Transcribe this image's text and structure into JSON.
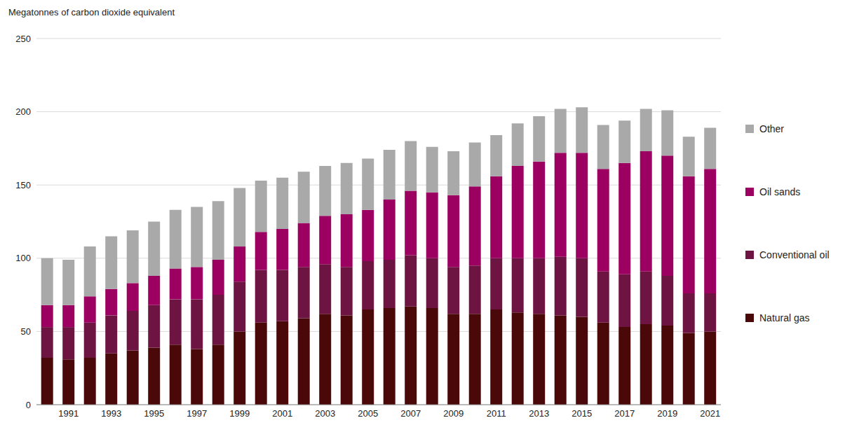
{
  "chart_data": {
    "type": "bar",
    "stacked": true,
    "grid": true,
    "legend": "right",
    "y_label": "Megatonnes of carbon dioxide equivalent",
    "categories": [
      null,
      "1991",
      null,
      "1993",
      null,
      "1995",
      null,
      "1997",
      null,
      "1999",
      null,
      "2001",
      null,
      "2003",
      null,
      "2005",
      null,
      "2007",
      null,
      "2009",
      null,
      "2011",
      null,
      "2013",
      null,
      "2015",
      null,
      "2017",
      null,
      "2019",
      null,
      "2021"
    ],
    "ylim": [
      0,
      250
    ],
    "yticks": [
      0,
      50,
      100,
      150,
      200,
      250
    ],
    "series": [
      {
        "name": "Natural gas",
        "color": "#4a0808",
        "values": [
          32,
          31,
          32,
          35,
          37,
          39,
          41,
          38,
          41,
          50,
          56,
          57,
          59,
          62,
          61,
          65,
          66,
          67,
          66,
          62,
          62,
          65,
          63,
          62,
          61,
          60,
          56,
          53,
          55,
          54,
          49,
          50
        ]
      },
      {
        "name": "Conventional oil",
        "color": "#6e1442",
        "values": [
          21,
          22,
          24,
          26,
          27,
          29,
          31,
          34,
          34,
          34,
          36,
          35,
          35,
          34,
          33,
          33,
          33,
          35,
          34,
          32,
          33,
          35,
          37,
          38,
          40,
          40,
          35,
          36,
          36,
          34,
          27,
          26
        ]
      },
      {
        "name": "Oil sands",
        "color": "#9c0060",
        "values": [
          15,
          15,
          18,
          18,
          19,
          20,
          21,
          22,
          24,
          24,
          26,
          28,
          30,
          33,
          36,
          35,
          41,
          44,
          45,
          49,
          54,
          56,
          63,
          66,
          71,
          72,
          70,
          76,
          82,
          82,
          80,
          85
        ]
      },
      {
        "name": "Other",
        "color": "#a9a9a9",
        "values": [
          32,
          31,
          34,
          36,
          36,
          37,
          40,
          41,
          40,
          40,
          35,
          35,
          35,
          34,
          35,
          35,
          34,
          34,
          31,
          30,
          30,
          28,
          29,
          31,
          30,
          31,
          30,
          29,
          29,
          31,
          27,
          28
        ]
      }
    ]
  }
}
